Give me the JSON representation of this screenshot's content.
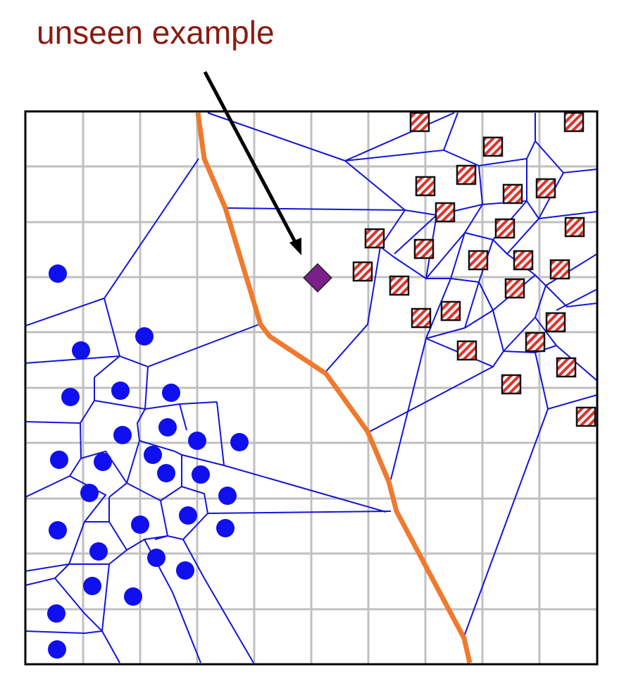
{
  "annotation": {
    "text": "unseen example",
    "color": "#8b1a10"
  },
  "colors": {
    "grid": "#c0c0c0",
    "voronoi_edges": "#1414d9",
    "decision_boundary": "#ef7a2e",
    "class_a": "#0f0ff0",
    "class_b_stripe": "#e0312a",
    "unseen_point": "#7b1f8a",
    "arrow": "#000000",
    "frame": "#000000"
  },
  "legend_semantics": {
    "class_a_marker": "filled-circle",
    "class_b_marker": "striped-square",
    "unseen_marker": "diamond"
  }
}
